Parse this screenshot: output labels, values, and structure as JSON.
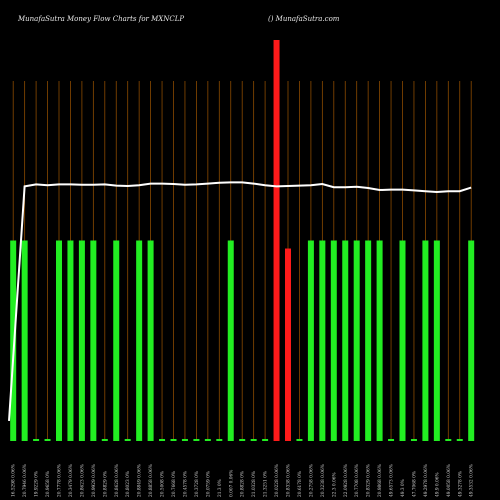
{
  "chart_data": {
    "type": "bar",
    "title": "MunafaSutra  Money Flow  Charts for MXNCLP",
    "watermark": "() MunafaSutra.com",
    "background": "#000000",
    "colors": {
      "up": "#22ee22",
      "down": "#ff1a1a",
      "line": "#ffffff",
      "grid": "#8a4a00"
    },
    "ylim": [
      0,
      100
    ],
    "categories": [
      "16.5298 0.06%",
      "20.7946 0.06%",
      "19.9229 0%",
      "20.9658 0%",
      "20.7778 0.06%",
      "20.3479 0.06%",
      "20.8623 0.06%",
      "20.9929 0.06%",
      "20.8829 0%",
      "20.8628 0.06%",
      "20.8023 0%",
      "20.8849 0.06%",
      "20.8858 0.06%",
      "20.5008 0%",
      "20.7668 0%",
      "20.4578 0%",
      "20.3728 0%",
      "20.0759 0%",
      "21.3 0%",
      "0.007 0.06%",
      "20.8828 0%",
      "21.0328 0%",
      "21.3251 0%",
      "20.0228 0.06%",
      "20.8338 0.06%",
      "20.6178 0%",
      "20.2758 0.06%",
      "20.3238 0.06%",
      "22.3 0.06%",
      "22.0928 0.06%",
      "20.7708 0.06%",
      "20.8329 0.06%",
      "20.9868 0.06%",
      "49.6573 0.06%",
      "49.3 0%",
      "47.7068 0%",
      "49.2978 0.06%",
      "49.9 0.06%",
      "49.0058 0.06%",
      "49.3278 0%",
      "49.3532 0.06%"
    ],
    "series": [
      {
        "values": [
          50,
          50,
          0.5,
          0.5,
          50,
          50,
          50,
          50,
          0.5,
          50,
          0.5,
          50,
          50,
          0.5,
          0.5,
          0.5,
          0.5,
          0.5,
          0.5,
          50,
          0.5,
          0.5,
          0.5,
          100,
          48,
          0.5,
          50,
          50,
          50,
          50,
          50,
          50,
          50,
          0.5,
          50,
          0.5,
          50,
          50,
          0.5,
          0.5,
          50
        ],
        "colors": [
          "up",
          "up",
          "up",
          "up",
          "up",
          "up",
          "up",
          "up",
          "up",
          "up",
          "up",
          "up",
          "up",
          "up",
          "up",
          "up",
          "up",
          "up",
          "up",
          "up",
          "up",
          "up",
          "up",
          "down",
          "down",
          "up",
          "up",
          "up",
          "up",
          "up",
          "up",
          "up",
          "up",
          "up",
          "up",
          "up",
          "up",
          "up",
          "up",
          "up",
          "up"
        ]
      },
      {
        "type": "line",
        "values": [
          5,
          63.5,
          64,
          63.8,
          64,
          64,
          63.9,
          63.9,
          64,
          63.7,
          63.6,
          63.8,
          64.2,
          64.2,
          64.1,
          63.9,
          64,
          64.2,
          64.4,
          64.5,
          64.5,
          64.2,
          63.8,
          63.5,
          63.6,
          63.7,
          63.8,
          64.1,
          63.3,
          63.3,
          63.4,
          63.1,
          62.6,
          62.7,
          62.7,
          62.5,
          62.3,
          62.1,
          62.3,
          62.3,
          63.2
        ]
      }
    ]
  }
}
